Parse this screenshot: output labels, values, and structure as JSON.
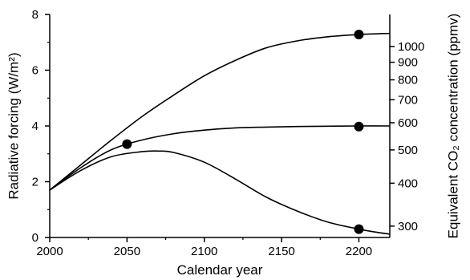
{
  "chart_data": {
    "type": "line",
    "xlabel": "Calendar year",
    "ylabel": "Radiative forcing (W/m²)",
    "ylabel_right": "Equivalent CO₂ concentration (ppmv)",
    "xlim": [
      2000,
      2220
    ],
    "ylim": [
      0,
      8
    ],
    "x_ticks": [
      2000,
      2050,
      2100,
      2150,
      2200
    ],
    "y_ticks": [
      0,
      2,
      4,
      6,
      8
    ],
    "right_axis_ticks": [
      {
        "label": "1000",
        "ppmv": 1000
      },
      {
        "label": "900",
        "ppmv": 900
      },
      {
        "label": "800",
        "ppmv": 800
      },
      {
        "label": "700",
        "ppmv": 700
      },
      {
        "label": "600",
        "ppmv": 600
      },
      {
        "label": "500",
        "ppmv": 500
      },
      {
        "label": "400",
        "ppmv": 400
      },
      {
        "label": "300",
        "ppmv": 300
      }
    ],
    "grid": false,
    "series": [
      {
        "x": [
          2000,
          2020,
          2040,
          2060,
          2080,
          2100,
          2120,
          2140,
          2160,
          2180,
          2200,
          2220
        ],
        "y": [
          1.7,
          2.6,
          3.5,
          4.35,
          5.1,
          5.8,
          6.35,
          6.8,
          7.05,
          7.2,
          7.28,
          7.32
        ]
      },
      {
        "x": [
          2000,
          2020,
          2040,
          2060,
          2080,
          2100,
          2120,
          2140,
          2160,
          2180,
          2200,
          2220
        ],
        "y": [
          1.7,
          2.5,
          3.15,
          3.5,
          3.72,
          3.85,
          3.93,
          3.96,
          3.98,
          3.99,
          4.0,
          4.0
        ]
      },
      {
        "x": [
          2000,
          2020,
          2040,
          2060,
          2070,
          2080,
          2100,
          2120,
          2140,
          2160,
          2180,
          2200,
          2210,
          2220
        ],
        "y": [
          1.7,
          2.4,
          2.9,
          3.08,
          3.1,
          3.05,
          2.7,
          2.1,
          1.45,
          0.95,
          0.55,
          0.3,
          0.2,
          0.12
        ]
      }
    ],
    "markers": [
      {
        "x": 2050,
        "y": 3.35
      },
      {
        "x": 2200,
        "y": 7.28
      },
      {
        "x": 2200,
        "y": 3.98
      },
      {
        "x": 2200,
        "y": 0.3
      }
    ]
  }
}
